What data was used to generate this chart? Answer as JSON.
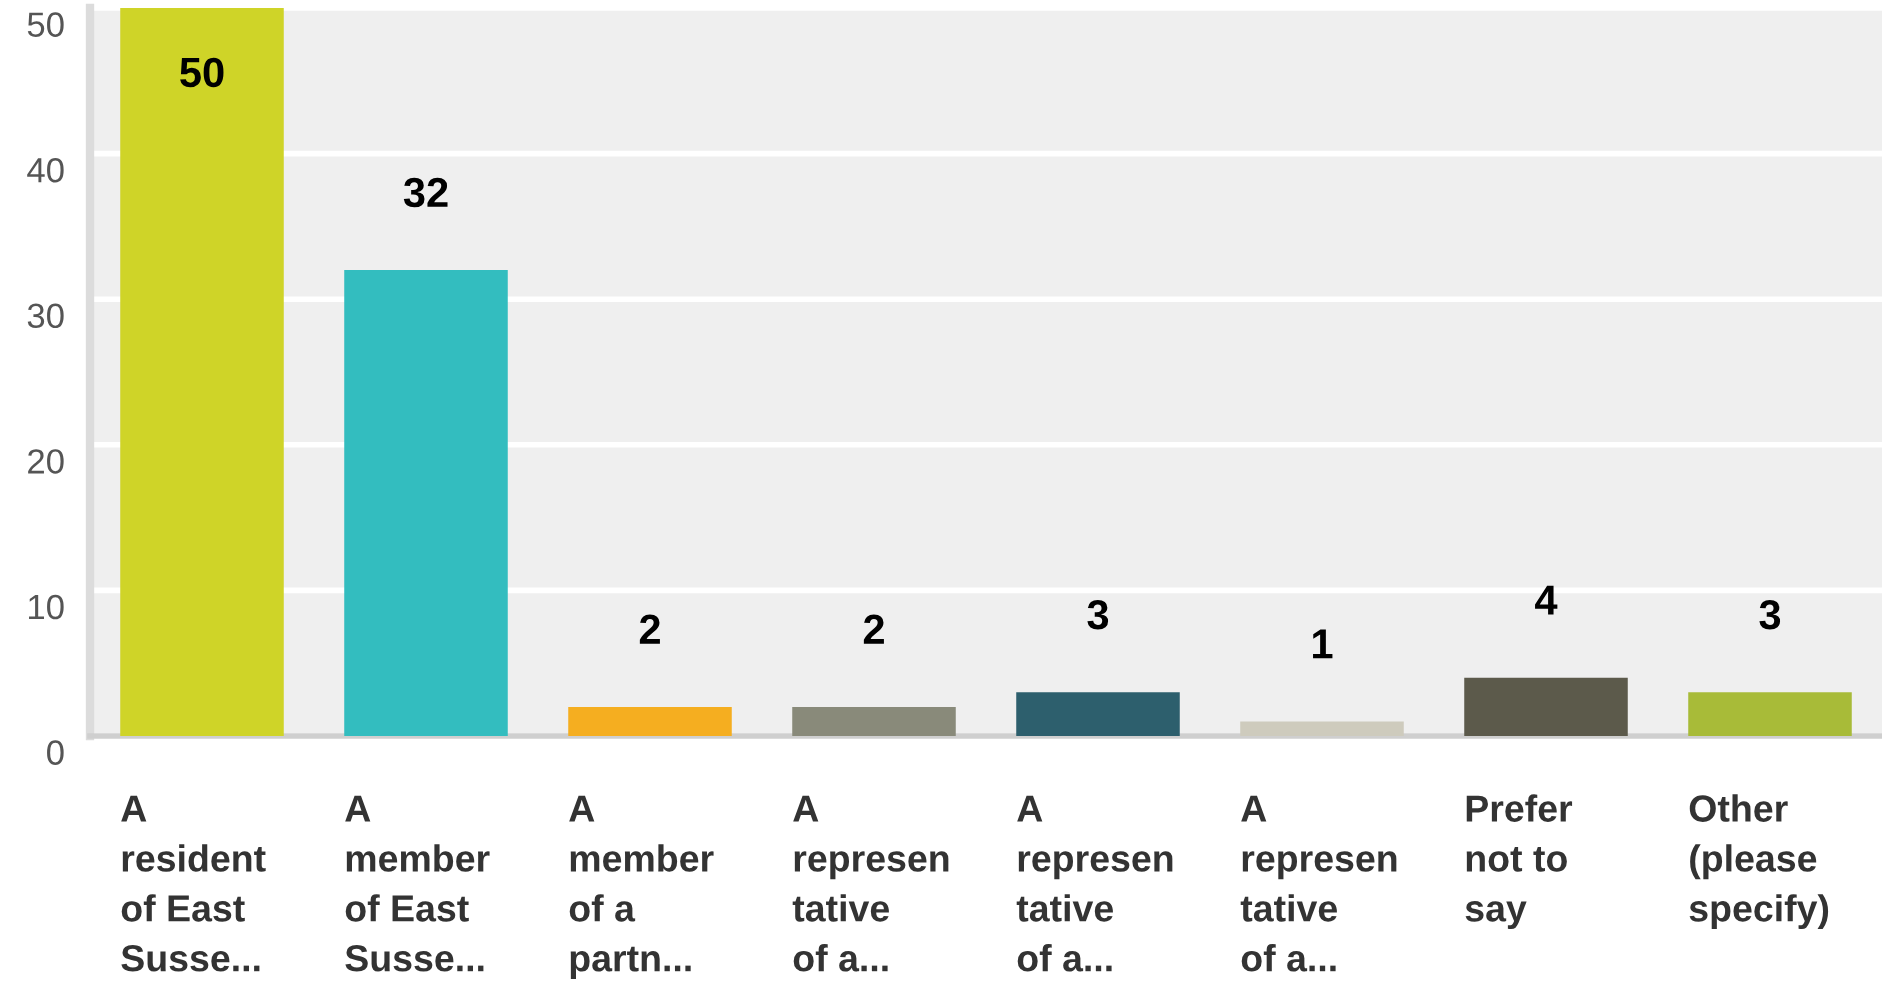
{
  "chart_data": {
    "type": "bar",
    "categories": [
      "A\nresident\nof East\nSusse...",
      "A\nmember\nof East\nSusse...",
      "A\nmember\nof a\npartn...",
      "A\nrepresen\ntative\nof a...",
      "A\nrepresen\ntative\nof a...",
      "A\nrepresen\ntative\nof a...",
      "Prefer\nnot to\nsay",
      "Other\n(please\nspecify)"
    ],
    "values": [
      50,
      32,
      2,
      2,
      3,
      1,
      4,
      3
    ],
    "colors": [
      "#cfd428",
      "#33bdbf",
      "#f5ae20",
      "#898a7a",
      "#2d5f6d",
      "#cecbbd",
      "#5c5a4b",
      "#a8bb38"
    ],
    "ylim": [
      0,
      50
    ],
    "yticks": [
      0,
      10,
      20,
      30,
      40,
      50
    ],
    "grid": "y",
    "data_labels": true
  }
}
